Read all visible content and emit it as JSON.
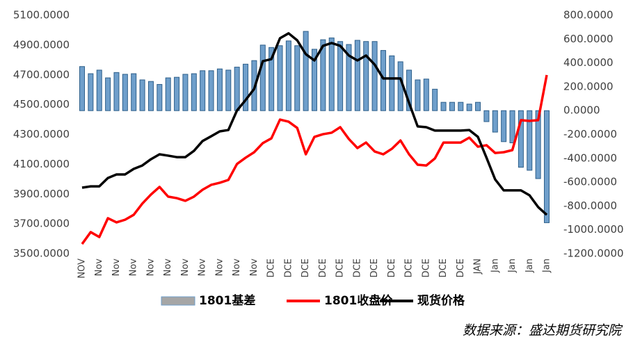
{
  "chart_data": {
    "type": "bar-line",
    "categories": [
      "NOV",
      null,
      "Nov",
      null,
      "Nov",
      null,
      "Nov",
      null,
      "Nov",
      null,
      "Nov",
      null,
      "Nov",
      null,
      "Nov",
      null,
      "Nov",
      null,
      "Nov",
      null,
      "Nov",
      null,
      "DCE",
      null,
      "DCE",
      null,
      "DCE",
      null,
      "DCE",
      null,
      "DCE",
      null,
      "DCE",
      null,
      "DCE",
      null,
      "DCE",
      null,
      "DCE",
      null,
      "DCE",
      null,
      "DCE",
      null,
      "DCE",
      null,
      "JAN",
      null,
      "Jan",
      null,
      "Jan",
      null,
      "Jan",
      null,
      "Jan"
    ],
    "series": [
      {
        "name": "1801基差",
        "type": "bar",
        "axis": "y2",
        "color": "#6f9fcb",
        "values": [
          370,
          310,
          340,
          275,
          320,
          305,
          310,
          258,
          245,
          220,
          275,
          280,
          305,
          310,
          335,
          335,
          350,
          340,
          365,
          390,
          420,
          550,
          530,
          545,
          585,
          545,
          665,
          515,
          595,
          610,
          580,
          555,
          590,
          580,
          580,
          505,
          460,
          410,
          340,
          258,
          265,
          180,
          70,
          70,
          70,
          55,
          70,
          -92,
          -180,
          -260,
          -270,
          -475,
          -500,
          -570,
          -940
        ]
      },
      {
        "name": "1801收盘价",
        "type": "line",
        "color": "#ff0000",
        "values": [
          3565,
          3645,
          3612,
          3738,
          3710,
          3728,
          3761,
          3836,
          3897,
          3948,
          3883,
          3873,
          3855,
          3883,
          3929,
          3962,
          3976,
          3995,
          4102,
          4144,
          4181,
          4242,
          4274,
          4400,
          4386,
          4344,
          4167,
          4284,
          4302,
          4312,
          4349,
          4270,
          4209,
          4246,
          4186,
          4167,
          4204,
          4260,
          4167,
          4097,
          4092,
          4139,
          4246,
          4246,
          4246,
          4279,
          4218,
          4228,
          4176,
          4181,
          4195,
          4396,
          4391,
          4396,
          4699
        ]
      },
      {
        "name": "现货价格",
        "type": "line",
        "color": "#000000",
        "values": [
          3943,
          3952,
          3952,
          4008,
          4032,
          4032,
          4069,
          4092,
          4134,
          4167,
          4158,
          4148,
          4148,
          4190,
          4256,
          4288,
          4321,
          4330,
          4461,
          4531,
          4606,
          4792,
          4806,
          4946,
          4979,
          4932,
          4839,
          4797,
          4895,
          4914,
          4895,
          4830,
          4797,
          4830,
          4769,
          4676,
          4676,
          4676,
          4512,
          4354,
          4349,
          4326,
          4326,
          4326,
          4326,
          4330,
          4284,
          4144,
          3999,
          3925,
          3925,
          3925,
          3892,
          3813,
          3761
        ]
      }
    ],
    "ylim": [
      3500,
      5100
    ],
    "yticks": [
      {
        "value": 3500,
        "label": "3500.0000"
      },
      {
        "value": 3700,
        "label": "3700.0000"
      },
      {
        "value": 3900,
        "label": "3900.0000"
      },
      {
        "value": 4100,
        "label": "4100.0000"
      },
      {
        "value": 4300,
        "label": "4300.0000"
      },
      {
        "value": 4500,
        "label": "4500.0000"
      },
      {
        "value": 4700,
        "label": "4700.0000"
      },
      {
        "value": 4900,
        "label": "4900.0000"
      },
      {
        "value": 5100,
        "label": "5100.0000"
      }
    ],
    "y2lim": [
      -1200,
      800
    ],
    "y2ticks": [
      {
        "value": -1200,
        "label": "-1200.0000"
      },
      {
        "value": -1000,
        "label": "-1000.0000"
      },
      {
        "value": -800,
        "label": "-800.0000"
      },
      {
        "value": -600,
        "label": "-600.0000"
      },
      {
        "value": -400,
        "label": "-400.0000"
      },
      {
        "value": -200,
        "label": "-200.0000"
      },
      {
        "value": 0,
        "label": "0.0000"
      },
      {
        "value": 200,
        "label": "200.0000"
      },
      {
        "value": 400,
        "label": "400.0000"
      },
      {
        "value": 600,
        "label": "600.0000"
      },
      {
        "value": 800,
        "label": "800.0000"
      }
    ],
    "legend": "bottom",
    "source": "数据来源：盛达期货研究院"
  }
}
